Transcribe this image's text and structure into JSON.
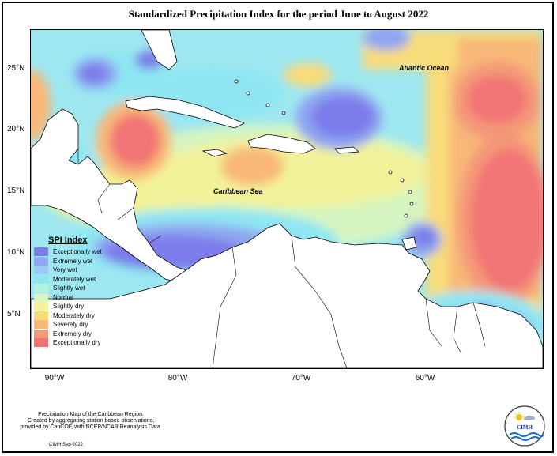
{
  "title": "Standardized Precipitation Index for the period June to August 2022",
  "map": {
    "ocean_labels": {
      "atlantic": "Atlantic Ocean",
      "caribbean": "Caribbean Sea"
    },
    "lat_ticks": [
      "25°N",
      "20°N",
      "15°N",
      "10°N",
      "5°N"
    ],
    "lon_ticks": [
      "90°W",
      "80°W",
      "70°W",
      "60°W"
    ]
  },
  "legend": {
    "title": "SPI Index",
    "items": [
      {
        "label": "Exceptionally wet",
        "color": "#7b7bea"
      },
      {
        "label": "Extremely wet",
        "color": "#8fa6f0"
      },
      {
        "label": "Very wet",
        "color": "#9ec8f5"
      },
      {
        "label": "Moderately wet",
        "color": "#8fe6f2"
      },
      {
        "label": "Slightly wet",
        "color": "#b4f2e0"
      },
      {
        "label": "Normal",
        "color": "#d6f5c0"
      },
      {
        "label": "Slightly dry",
        "color": "#f2f29a"
      },
      {
        "label": "Moderately dry",
        "color": "#f8dc7a"
      },
      {
        "label": "Severely dry",
        "color": "#f8b878"
      },
      {
        "label": "Extremely dry",
        "color": "#f49878"
      },
      {
        "label": "Exceptionally dry",
        "color": "#f27474"
      }
    ]
  },
  "credit": {
    "line1": "Precipitation Map of the Caribbean Region.",
    "line2": "Created by aggregating station based observations,",
    "line3": "provided by CariCOF, with NCEP/NCAR Reanalysis Data.",
    "date": "CIMH Sep-2022"
  },
  "logo": {
    "text": "CIMH",
    "icon": "cimh-logo-icon"
  }
}
